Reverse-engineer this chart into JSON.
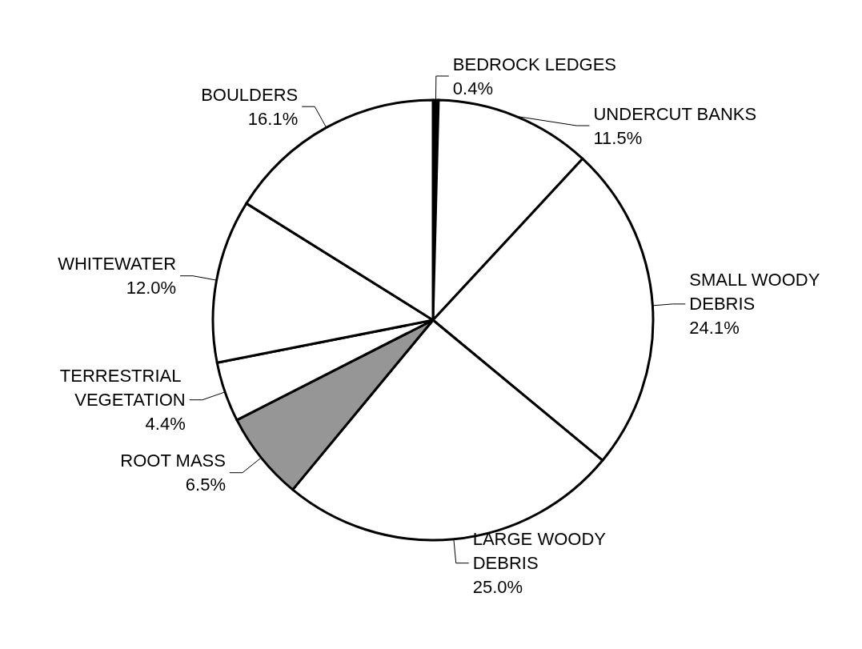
{
  "chart_data": {
    "type": "pie",
    "categories": [
      "BEDROCK LEDGES",
      "UNDERCUT BANKS",
      "SMALL WOODY DEBRIS",
      "LARGE WOODY DEBRIS",
      "ROOT MASS",
      "TERRESTRIAL VEGETATION",
      "WHITEWATER",
      "BOULDERS"
    ],
    "values": [
      0.4,
      11.5,
      24.1,
      25.0,
      6.5,
      4.4,
      12.0,
      16.1
    ],
    "value_labels": [
      "0.4%",
      "11.5%",
      "24.1%",
      "25.0%",
      "6.5%",
      "4.4%",
      "12.0%",
      "16.1%"
    ],
    "colors": [
      "#000000",
      "#ffffff",
      "#ffffff",
      "#ffffff",
      "#969696",
      "#ffffff",
      "#ffffff",
      "#ffffff"
    ],
    "legend": false
  }
}
